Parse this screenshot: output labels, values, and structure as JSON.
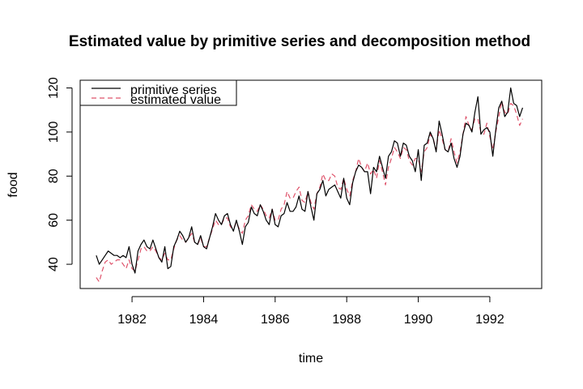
{
  "chart_data": {
    "type": "line",
    "title": "Estimated value by primitive series and decomposition method",
    "xlabel": "time",
    "ylabel": "food",
    "xlim": [
      1980.55,
      1993.45
    ],
    "ylim": [
      29,
      123.5
    ],
    "x_ticks": [
      1982,
      1984,
      1986,
      1988,
      1990,
      1992
    ],
    "y_ticks": [
      40,
      60,
      80,
      100,
      120
    ],
    "x_start": 1981,
    "x_step": 0.08333333,
    "legend_position": "top-left",
    "grid": false,
    "series": [
      {
        "name": "primitive series",
        "color": "#000000",
        "dash": "solid",
        "values": [
          44,
          40,
          42,
          44,
          46,
          45,
          44,
          44,
          43,
          44,
          43,
          48,
          40,
          36,
          46,
          49,
          51,
          48,
          47,
          51,
          47,
          43,
          41,
          48,
          38,
          39,
          48,
          51,
          55,
          53,
          50,
          52,
          57,
          50,
          49,
          53,
          48,
          47,
          52,
          57,
          63,
          60,
          58,
          62,
          63,
          58,
          55,
          60,
          55,
          49,
          57,
          59,
          66,
          63,
          62,
          67,
          64,
          60,
          58,
          65,
          58,
          57,
          62,
          63,
          68,
          64,
          64,
          66,
          71,
          65,
          64,
          73,
          66,
          60,
          72,
          74,
          78,
          71,
          74,
          75,
          76,
          73,
          70,
          79,
          70,
          67,
          77,
          82,
          85,
          84,
          82,
          82,
          72,
          84,
          82,
          89,
          84,
          79,
          89,
          91,
          96,
          95,
          89,
          95,
          94,
          89,
          87,
          82,
          92,
          78,
          94,
          95,
          100,
          97,
          91,
          105,
          99,
          92,
          91,
          95,
          88,
          84,
          89,
          99,
          104,
          103,
          100,
          109,
          116,
          99,
          101,
          102,
          100,
          89,
          101,
          111,
          114,
          107,
          109,
          120,
          113,
          112,
          107,
          111
        ]
      },
      {
        "name": "estimated value",
        "color": "#DF536B",
        "dash": "dashed",
        "values": [
          34,
          32,
          37,
          41,
          42,
          40,
          41,
          42,
          42,
          40,
          38,
          42,
          38,
          37,
          42,
          47,
          48,
          46,
          46,
          48,
          46,
          43,
          42,
          45,
          42,
          42,
          47,
          51,
          53,
          51,
          50,
          52,
          54,
          50,
          49,
          52,
          48,
          48,
          52,
          56,
          60,
          58,
          58,
          61,
          61,
          57,
          56,
          59,
          56,
          54,
          60,
          62,
          67,
          65,
          64,
          67,
          65,
          62,
          61,
          65,
          60,
          60,
          65,
          67,
          73,
          70,
          70,
          73,
          75,
          69,
          68,
          73,
          68,
          65,
          72,
          75,
          81,
          78,
          78,
          81,
          80,
          75,
          74,
          79,
          74,
          71,
          78,
          82,
          88,
          84,
          82,
          86,
          81,
          83,
          79,
          87,
          82,
          76,
          84,
          88,
          93,
          91,
          88,
          93,
          92,
          87,
          85,
          88,
          88,
          82,
          91,
          93,
          99,
          97,
          92,
          101,
          97,
          92,
          91,
          97,
          91,
          86,
          91,
          99,
          107,
          103,
          101,
          106,
          106,
          100,
          99,
          104,
          98,
          92,
          100,
          107,
          114,
          109,
          108,
          113,
          112,
          108,
          103,
          106
        ]
      }
    ]
  }
}
